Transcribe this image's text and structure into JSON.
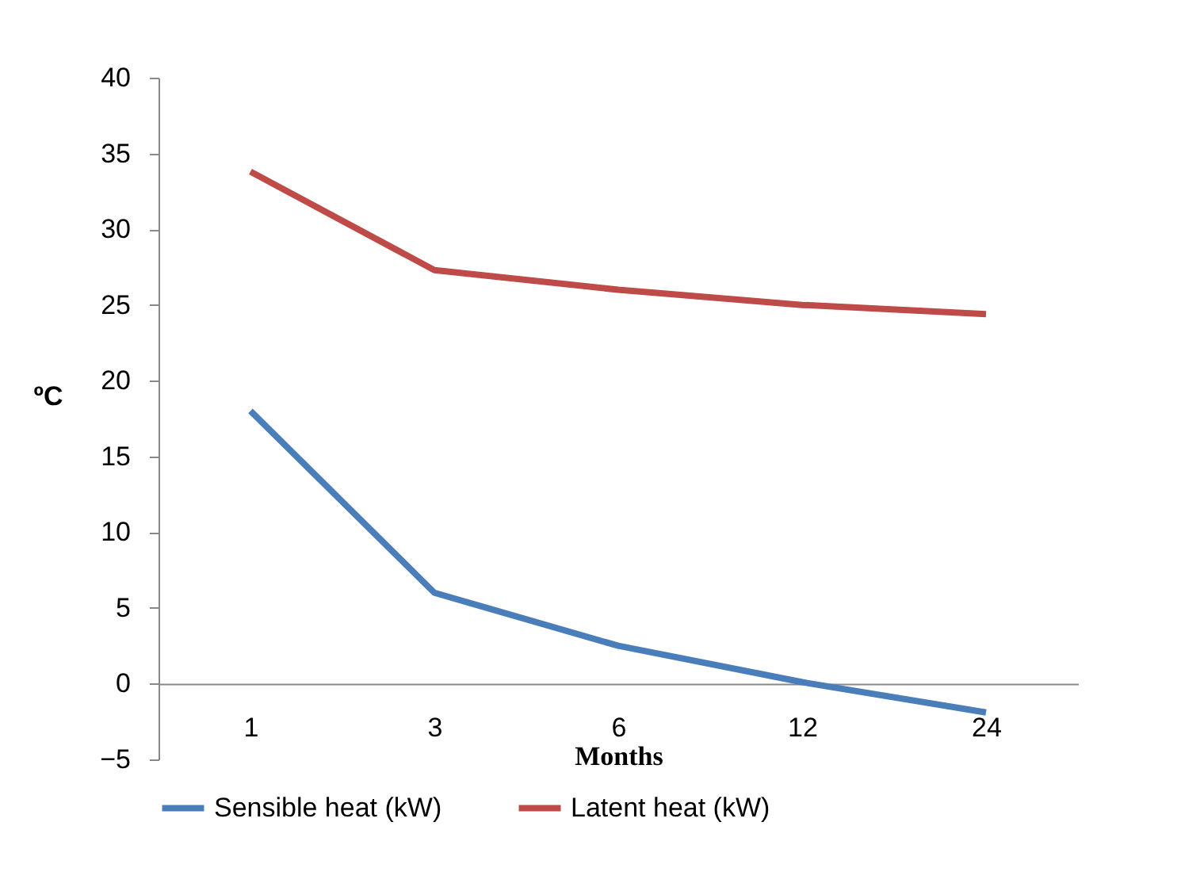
{
  "chart_data": {
    "type": "line",
    "xlabel": "Months",
    "ylabel": "ºC",
    "categories": [
      "1",
      "3",
      "6",
      "12",
      "24"
    ],
    "series": [
      {
        "name": "Sensible heat (kW)",
        "color": "#4a7ebb",
        "values": [
          18.0,
          6.0,
          2.5,
          0.1,
          -1.9
        ]
      },
      {
        "name": "Latent heat (kW)",
        "color": "#be4b48",
        "values": [
          33.8,
          27.3,
          26.0,
          25.0,
          24.4
        ]
      }
    ],
    "ylim": [
      -5,
      40
    ],
    "yticks": [
      -5,
      0,
      5,
      10,
      15,
      20,
      25,
      30,
      35,
      40
    ],
    "grid": false,
    "legend": "bottom",
    "marker": "none",
    "line_style": "solid"
  }
}
